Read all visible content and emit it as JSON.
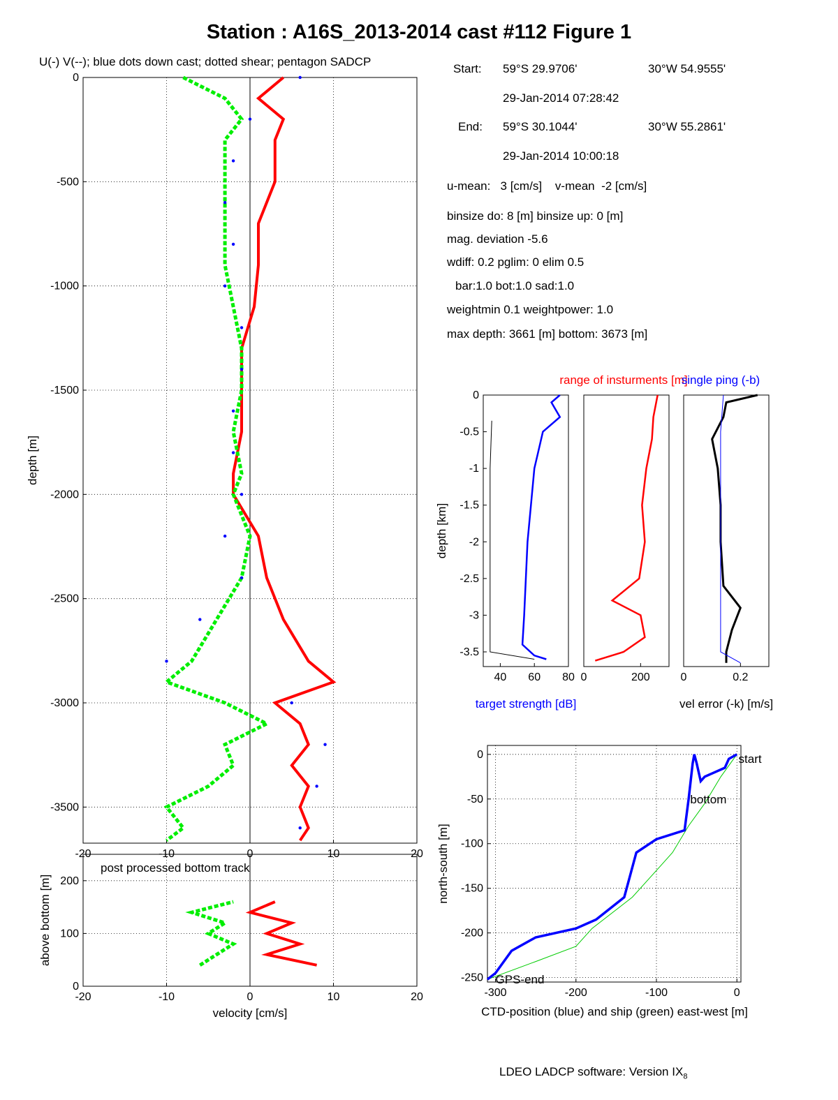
{
  "title": "Station : A16S_2013-2014 cast #112  Figure 1",
  "subtitle": "U(-) V(--); blue dots down cast; dotted shear; pentagon SADCP",
  "info": {
    "start_label": "Start:",
    "start_lat": "59°S 29.9706'",
    "start_lon": "30°W 54.9555'",
    "start_time": "29-Jan-2014 07:28:42",
    "end_label": "End:",
    "end_lat": "59°S 30.1044'",
    "end_lon": "30°W 55.2861'",
    "end_time": "29-Jan-2014 10:00:18",
    "means": "u-mean:   3 [cm/s]    v-mean  -2 [cm/s]",
    "binsize": "binsize do: 8 [m]  binsize up:  0 [m]",
    "magdev": "mag. deviation -5.6",
    "wdiff": "wdiff: 0.2  pglim: 0  elim 0.5",
    "bar": "bar:1.0 bot:1.0 sad:1.0",
    "weight": "weightmin 0.1  weightpower: 1.0",
    "depth": "max depth: 3661 [m]   bottom: 3673 [m]"
  },
  "footer": {
    "software": "LDEO LADCP software: Version IX",
    "version_sub": "8"
  },
  "colors": {
    "u": "#ff0000",
    "v": "#00ee00",
    "down_cast": "#0000ff",
    "target": "#0000ff",
    "ctd_track": "#0000ff",
    "ship_track": "#00cc00",
    "link": "#ffee00"
  },
  "chart_data": [
    {
      "id": "velocity_profile",
      "type": "line",
      "title": "",
      "xlabel": "",
      "ylabel": "depth [m]",
      "xlim": [
        -20,
        20
      ],
      "ylim": [
        -3673,
        0
      ],
      "xticks": [
        -20,
        -10,
        0,
        10,
        20
      ],
      "yticks": [
        0,
        -500,
        -1000,
        -1500,
        -2000,
        -2500,
        -3000,
        -3500
      ],
      "grid": true,
      "series": [
        {
          "key": "u",
          "depth": [
            0,
            -100,
            -200,
            -300,
            -400,
            -500,
            -700,
            -900,
            -1100,
            -1300,
            -1500,
            -1700,
            -1900,
            -2000,
            -2200,
            -2400,
            -2600,
            -2800,
            -2900,
            -3000,
            -3100,
            -3200,
            -3300,
            -3400,
            -3500,
            -3600,
            -3660
          ],
          "values": [
            4,
            1,
            4,
            3,
            3,
            3,
            1,
            1,
            0.5,
            -1,
            -1,
            -1,
            -2,
            -2,
            1,
            2,
            4,
            7,
            10,
            3,
            6,
            7,
            5,
            7,
            6,
            7,
            6
          ]
        },
        {
          "key": "v",
          "depth": [
            0,
            -100,
            -200,
            -300,
            -400,
            -500,
            -700,
            -900,
            -1100,
            -1300,
            -1500,
            -1700,
            -1900,
            -2000,
            -2200,
            -2400,
            -2600,
            -2800,
            -2900,
            -3000,
            -3100,
            -3200,
            -3300,
            -3400,
            -3500,
            -3600,
            -3660
          ],
          "values": [
            -8,
            -3,
            -1,
            -3,
            -3,
            -3,
            -3,
            -3,
            -2,
            -1,
            -1,
            -2,
            -1,
            -2,
            0,
            -1,
            -4,
            -7,
            -10,
            -3,
            2,
            -3,
            -2,
            -5,
            -10,
            -8,
            -10
          ]
        },
        {
          "key": "down_cast",
          "depth": [
            0,
            -200,
            -400,
            -600,
            -800,
            -1000,
            -1200,
            -1400,
            -1600,
            -1800,
            -2000,
            -2200,
            -2400,
            -2600,
            -2800,
            -3000,
            -3200,
            -3400,
            -3600
          ],
          "values": [
            6,
            0,
            -2,
            -3,
            -2,
            -3,
            -1,
            -1,
            -2,
            -2,
            -1,
            -3,
            -1,
            -6,
            -10,
            5,
            9,
            8,
            6
          ]
        }
      ]
    },
    {
      "id": "bottom_track",
      "type": "line",
      "title": "post processed bottom track",
      "xlabel": "velocity [cm/s]",
      "ylabel": "above bottom [m]",
      "xlim": [
        -20,
        20
      ],
      "ylim": [
        0,
        250
      ],
      "xticks": [
        -20,
        -10,
        0,
        10,
        20
      ],
      "yticks": [
        0,
        100,
        200
      ],
      "grid": true,
      "series": [
        {
          "key": "u",
          "height": [
            40,
            60,
            80,
            100,
            120,
            140,
            160
          ],
          "values": [
            8,
            2,
            6,
            2,
            5,
            0,
            3
          ]
        },
        {
          "key": "v",
          "height": [
            40,
            60,
            80,
            100,
            120,
            140,
            160
          ],
          "values": [
            -6,
            -4,
            -2,
            -5,
            -3,
            -7,
            -2
          ]
        }
      ]
    },
    {
      "id": "target_strength",
      "type": "line",
      "xlabel": "target strength [dB]",
      "ylabel": "depth [km]",
      "xlim": [
        30,
        80
      ],
      "ylim": [
        -3.7,
        0
      ],
      "xticks": [
        40,
        60,
        80
      ],
      "yticks": [
        0,
        -0.5,
        -1,
        -1.5,
        -2,
        -2.5,
        -3,
        -3.5
      ],
      "series": [
        {
          "key": "target_strength",
          "depth": [
            0,
            -0.1,
            -0.3,
            -0.5,
            -0.8,
            -1.0,
            -1.5,
            -2.0,
            -2.5,
            -3.0,
            -3.4,
            -3.55,
            -3.6
          ],
          "values": [
            75,
            70,
            75,
            65,
            62,
            60,
            58,
            56,
            55,
            54,
            53,
            60,
            67
          ]
        },
        {
          "key": "noise",
          "depth": [
            -0.35,
            -1,
            -2,
            -3,
            -3.5,
            -3.6
          ],
          "values": [
            35,
            34,
            34,
            34,
            34,
            60
          ]
        }
      ]
    },
    {
      "id": "instrument_range",
      "type": "line",
      "xlabel": "range of insturments [m]",
      "ylim": [
        -3.7,
        0
      ],
      "xlim": [
        0,
        300
      ],
      "xticks": [
        0,
        200
      ],
      "series": [
        {
          "key": "range",
          "depth": [
            0,
            -0.3,
            -0.6,
            -1.0,
            -1.5,
            -2.0,
            -2.5,
            -2.8,
            -3.0,
            -3.3,
            -3.5,
            -3.62
          ],
          "values": [
            260,
            245,
            240,
            220,
            205,
            215,
            195,
            100,
            200,
            215,
            140,
            40
          ]
        }
      ]
    },
    {
      "id": "vel_error",
      "type": "line",
      "xlabel": "vel error (-k) [m/s]",
      "legend": "single ping (-b)",
      "xlim": [
        0,
        0.3
      ],
      "ylim": [
        -3.7,
        0
      ],
      "xticks": [
        0,
        0.2
      ],
      "series": [
        {
          "key": "vel_error_k",
          "depth": [
            0,
            -0.1,
            -0.3,
            -0.6,
            -1.0,
            -1.5,
            -2.0,
            -2.6,
            -2.9,
            -3.2,
            -3.5,
            -3.65
          ],
          "values": [
            0.26,
            0.15,
            0.14,
            0.1,
            0.12,
            0.13,
            0.13,
            0.14,
            0.2,
            0.17,
            0.15,
            0.15
          ]
        },
        {
          "key": "single_ping",
          "depth": [
            0,
            -0.5,
            -1,
            -2,
            -3,
            -3.5,
            -3.65
          ],
          "values": [
            0.14,
            0.13,
            0.13,
            0.13,
            0.13,
            0.13,
            0.2
          ]
        }
      ]
    },
    {
      "id": "position",
      "type": "line",
      "xlabel": "CTD-position (blue) and ship (green) east-west [m]",
      "ylabel": "north-south [m]",
      "xlim": [
        -310,
        5
      ],
      "ylim": [
        -255,
        10
      ],
      "xticks": [
        -300,
        -200,
        -100,
        0
      ],
      "yticks": [
        0,
        -50,
        -100,
        -150,
        -200,
        -250
      ],
      "labels": [
        {
          "text": "start",
          "x": 2,
          "y": -5
        },
        {
          "text": "bottom",
          "x": -58,
          "y": -50
        },
        {
          "text": "GPS-end",
          "x": -300,
          "y": -252
        }
      ],
      "series": [
        {
          "key": "ctd",
          "x": [
            0,
            -10,
            -15,
            -40,
            -45,
            -50,
            -53,
            -55,
            -60,
            -65,
            -100,
            -125,
            -140,
            -175,
            -200,
            -250,
            -280,
            -300,
            -310
          ],
          "y": [
            0,
            -5,
            -15,
            -25,
            -30,
            -10,
            0,
            -10,
            -50,
            -85,
            -95,
            -110,
            -160,
            -185,
            -195,
            -205,
            -220,
            -245,
            -252
          ]
        },
        {
          "key": "ship",
          "x": [
            0,
            -20,
            -40,
            -60,
            -80,
            -95,
            -130,
            -180,
            -200,
            -250,
            -310
          ],
          "y": [
            0,
            -25,
            -55,
            -80,
            -110,
            -125,
            -160,
            -195,
            -215,
            -232,
            -252
          ]
        }
      ]
    }
  ]
}
